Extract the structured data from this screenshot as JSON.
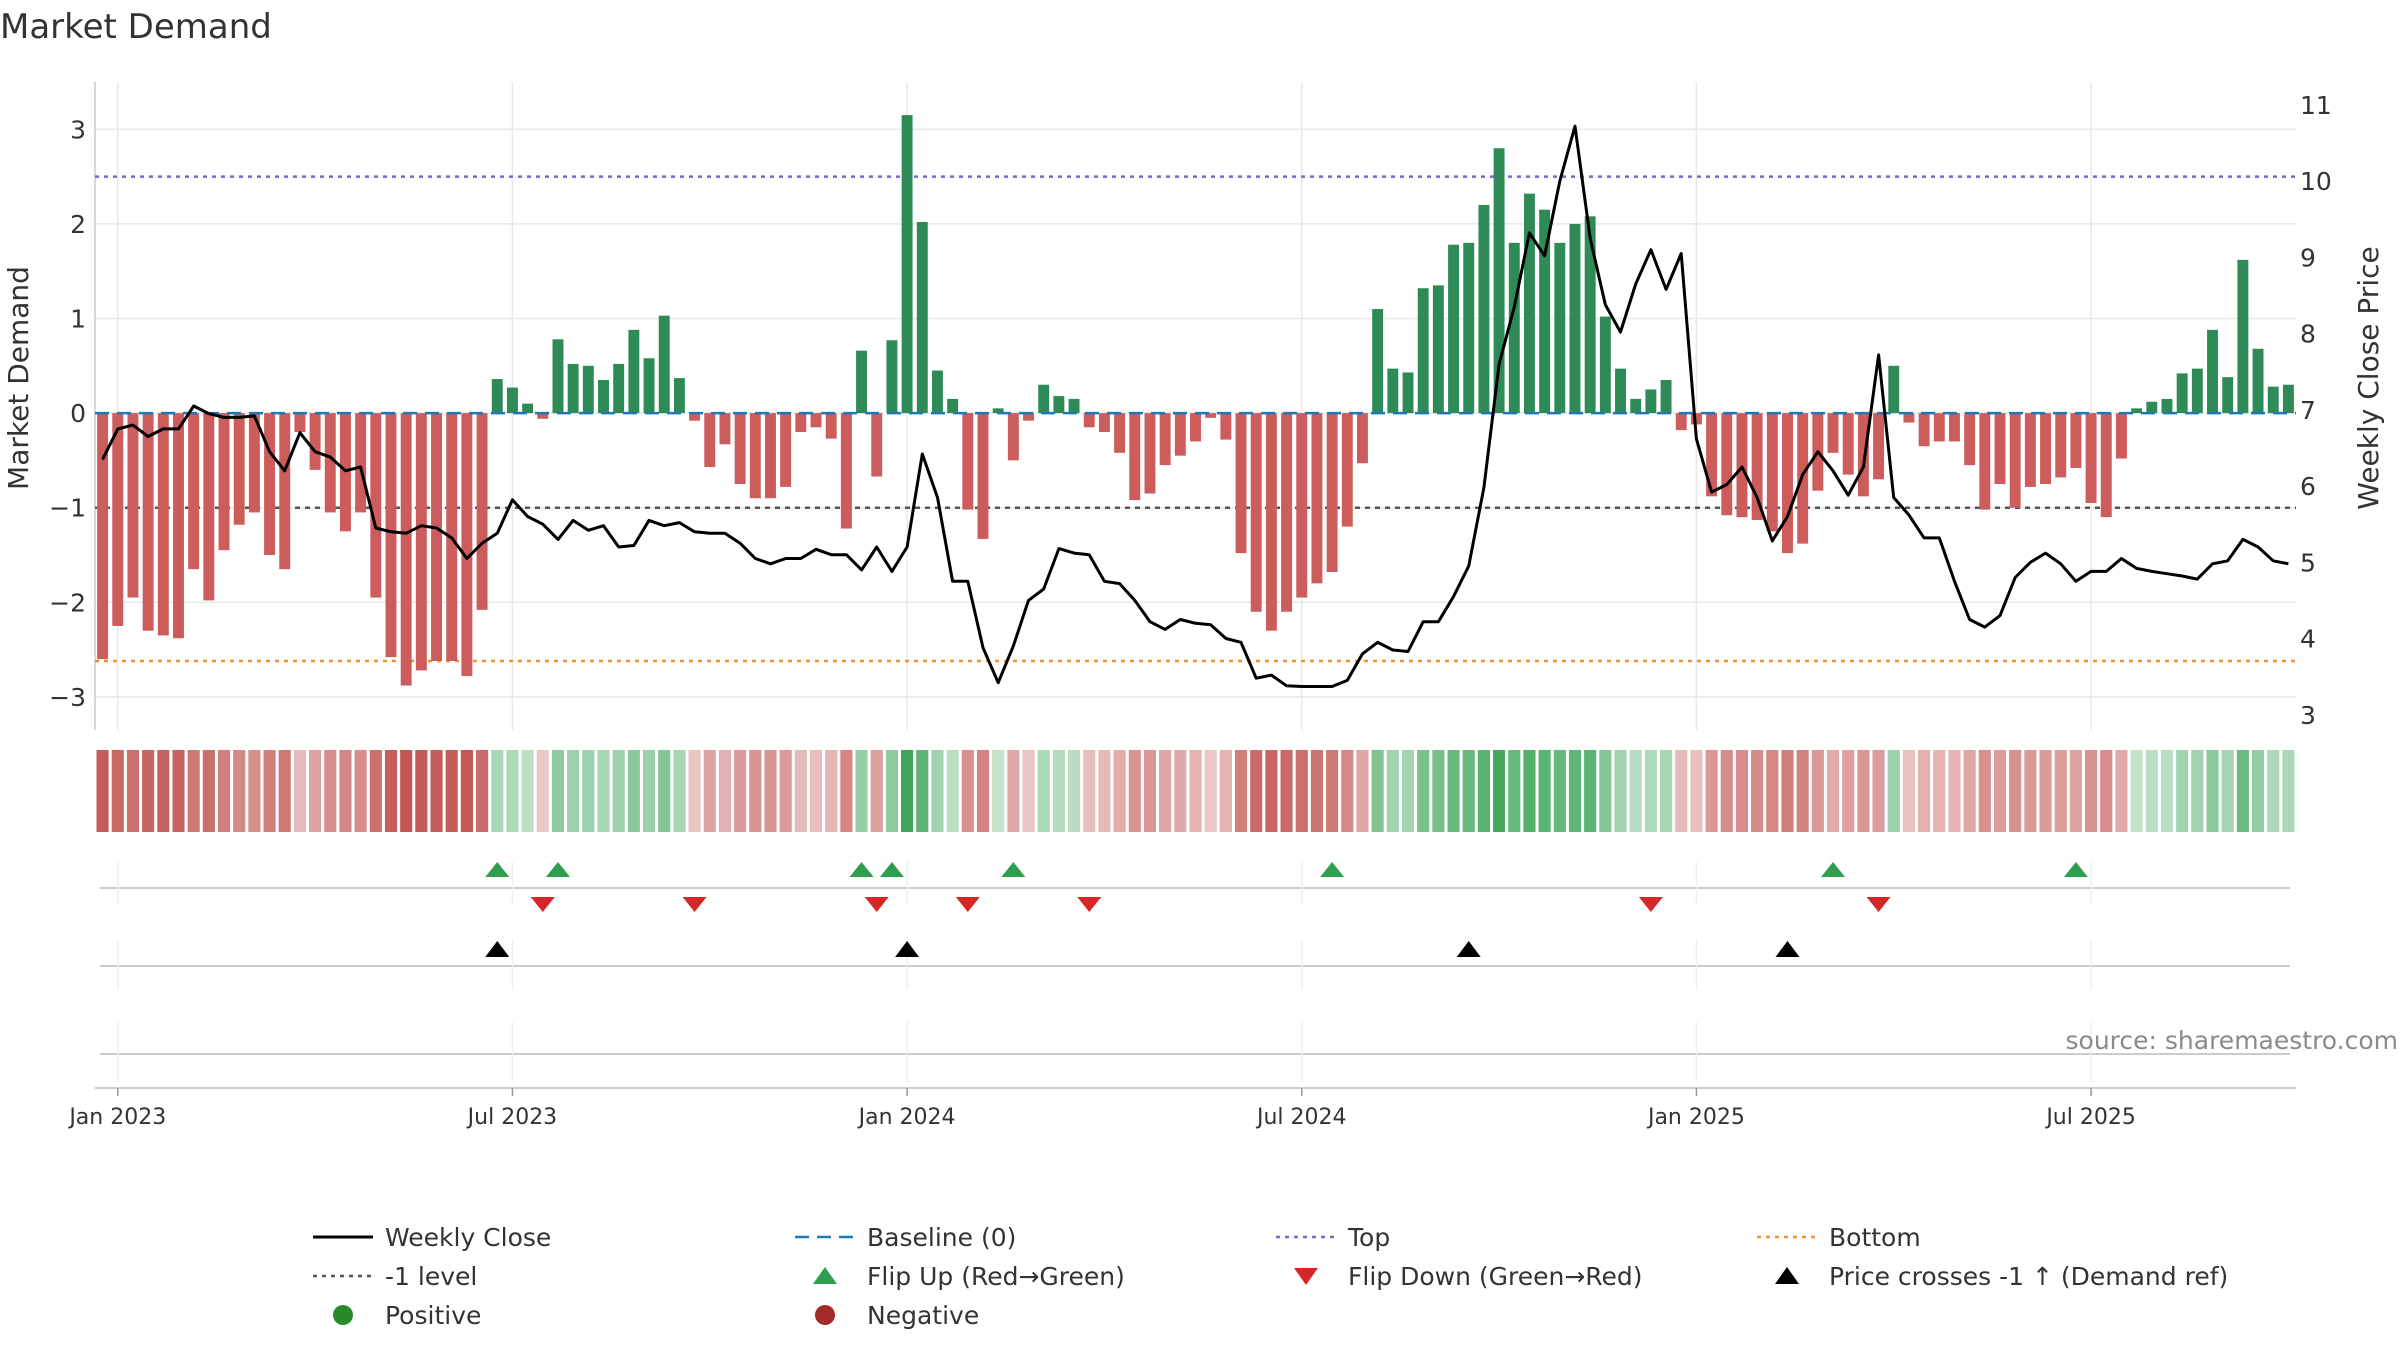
{
  "chart_data": {
    "type": "bar+line",
    "title": "Market Demand",
    "ylabel_left": "Market Demand",
    "ylabel_right": "Weekly Close Price",
    "source": "source: sharemaestro.com",
    "ylim_left": [
      -3.35,
      3.5
    ],
    "ylim_right": [
      2.8,
      11.3
    ],
    "yticks_left": [
      "3",
      "2",
      "1",
      "0",
      "−1",
      "−2",
      "−3"
    ],
    "yticks_left_values": [
      3,
      2,
      1,
      0,
      -1,
      -2,
      -3
    ],
    "yticks_right": [
      "11",
      "10",
      "9",
      "8",
      "7",
      "6",
      "5",
      "4",
      "3"
    ],
    "yticks_right_values": [
      11,
      10,
      9,
      8,
      7,
      6,
      5,
      4,
      3
    ],
    "x_start_week_offset": 0,
    "xticks": [
      {
        "label": "Jan 2023",
        "week": 1
      },
      {
        "label": "Jul 2023",
        "week": 27
      },
      {
        "label": "Jan 2024",
        "week": 53
      },
      {
        "label": "Jul 2024",
        "week": 79
      },
      {
        "label": "Jan 2025",
        "week": 105
      },
      {
        "label": "Jul 2025",
        "week": 131
      }
    ],
    "levels": {
      "top": 2.5,
      "bottom": -2.62,
      "minus_one": -1,
      "baseline": 0
    },
    "demand": [
      -2.6,
      -2.25,
      -1.95,
      -2.3,
      -2.35,
      -2.38,
      -1.65,
      -1.98,
      -1.45,
      -1.18,
      -1.05,
      -1.5,
      -1.65,
      -0.2,
      -0.6,
      -1.05,
      -1.25,
      -1.05,
      -1.95,
      -2.58,
      -2.88,
      -2.72,
      -2.62,
      -2.62,
      -2.78,
      -2.08,
      0.36,
      0.27,
      0.1,
      -0.06,
      0.78,
      0.52,
      0.5,
      0.35,
      0.52,
      0.88,
      0.58,
      1.03,
      0.37,
      -0.08,
      -0.57,
      -0.33,
      -0.75,
      -0.9,
      -0.9,
      -0.78,
      -0.2,
      -0.15,
      -0.27,
      -1.22,
      0.66,
      -0.67,
      0.77,
      3.15,
      2.02,
      0.45,
      0.15,
      -1.02,
      -1.33,
      0.05,
      -0.5,
      -0.08,
      0.3,
      0.18,
      0.15,
      -0.15,
      -0.2,
      -0.42,
      -0.92,
      -0.85,
      -0.55,
      -0.45,
      -0.3,
      -0.05,
      -0.28,
      -1.48,
      -2.1,
      -2.3,
      -2.1,
      -1.95,
      -1.8,
      -1.68,
      -1.2,
      -0.53,
      1.1,
      0.47,
      0.43,
      1.32,
      1.35,
      1.78,
      1.8,
      2.2,
      2.8,
      1.8,
      2.32,
      2.15,
      1.8,
      2.0,
      2.08,
      1.02,
      0.47,
      0.15,
      0.25,
      0.35,
      -0.18,
      -0.12,
      -0.88,
      -1.08,
      -1.1,
      -1.13,
      -1.25,
      -1.48,
      -1.38,
      -0.82,
      -0.42,
      -0.65,
      -0.88,
      -0.7,
      0.5,
      -0.1,
      -0.35,
      -0.3,
      -0.3,
      -0.55,
      -1.02,
      -0.75,
      -1.0,
      -0.78,
      -0.75,
      -0.68,
      -0.58,
      -0.95,
      -1.1,
      -0.48,
      0.05,
      0.12,
      0.15,
      0.42,
      0.47,
      0.88,
      0.38,
      1.62,
      0.68,
      0.28,
      0.3
    ],
    "weekly_close": [
      6.35,
      6.75,
      6.8,
      6.65,
      6.75,
      6.75,
      7.05,
      6.95,
      6.9,
      6.9,
      6.92,
      6.45,
      6.2,
      6.7,
      6.45,
      6.38,
      6.2,
      6.25,
      5.45,
      5.4,
      5.38,
      5.48,
      5.45,
      5.32,
      5.05,
      5.25,
      5.38,
      5.82,
      5.6,
      5.5,
      5.3,
      5.55,
      5.42,
      5.48,
      5.2,
      5.22,
      5.55,
      5.48,
      5.52,
      5.4,
      5.38,
      5.38,
      5.25,
      5.05,
      4.98,
      5.05,
      5.05,
      5.17,
      5.1,
      5.1,
      4.9,
      5.2,
      4.88,
      5.2,
      6.42,
      5.85,
      4.75,
      4.75,
      3.88,
      3.42,
      3.9,
      4.5,
      4.65,
      5.18,
      5.12,
      5.1,
      4.75,
      4.72,
      4.5,
      4.22,
      4.12,
      4.25,
      4.2,
      4.18,
      4.0,
      3.95,
      3.48,
      3.52,
      3.38,
      3.37,
      3.37,
      3.37,
      3.45,
      3.8,
      3.95,
      3.85,
      3.83,
      4.22,
      4.22,
      4.55,
      4.95,
      5.98,
      7.6,
      8.35,
      9.32,
      9.02,
      10.0,
      10.72,
      9.25,
      8.38,
      8.02,
      8.65,
      9.1,
      8.58,
      9.05,
      6.62,
      5.92,
      6.02,
      6.25,
      5.85,
      5.28,
      5.6,
      6.15,
      6.45,
      6.2,
      5.88,
      6.25,
      7.72,
      5.85,
      5.62,
      5.32,
      5.32,
      4.75,
      4.25,
      4.15,
      4.3,
      4.8,
      5.0,
      5.12,
      4.98,
      4.75,
      4.88,
      4.88,
      5.05,
      4.92,
      4.88,
      4.85,
      4.82,
      4.78,
      4.98,
      5.02,
      5.3,
      5.2,
      5.02,
      4.98
    ],
    "flip_up_weeks": [
      26,
      30,
      50,
      52,
      60,
      81,
      114,
      130
    ],
    "flip_down_weeks": [
      29,
      39,
      51,
      57,
      65,
      102,
      117
    ],
    "price_cross_weeks": [
      26,
      53,
      90,
      111
    ],
    "legend": [
      {
        "label": "Weekly Close",
        "marker": "line-solid",
        "color": "#000000"
      },
      {
        "label": "Baseline (0)",
        "marker": "line-dash",
        "color": "#1f77b4"
      },
      {
        "label": "Top",
        "marker": "line-dot",
        "color": "#7b68c8"
      },
      {
        "label": "Bottom",
        "marker": "line-dot",
        "color": "#e8962a"
      },
      {
        "label": "-1 level",
        "marker": "line-dot",
        "color": "#555555"
      },
      {
        "label": "Flip Up (Red→Green)",
        "marker": "triangle-up",
        "color": "#2e9e4f"
      },
      {
        "label": "Flip Down (Green→Red)",
        "marker": "triangle-down",
        "color": "#d62728"
      },
      {
        "label": "Price crosses -1 ↑ (Demand ref)",
        "marker": "triangle-up",
        "color": "#000000"
      },
      {
        "label": "Positive",
        "marker": "circle",
        "color": "#2a8a2a"
      },
      {
        "label": "Negative",
        "marker": "circle",
        "color": "#a52a2a"
      }
    ],
    "colors": {
      "positive_bar": "#2e8b57",
      "negative_bar": "#cd5c5c",
      "strip_green": "#3ea55a",
      "strip_red": "#c0504d",
      "top_line": "#7b68c8",
      "bottom_line": "#e8962a",
      "minus_one_line": "#555555",
      "baseline": "#1f77b4",
      "price_line": "#000000",
      "flip_up": "#2e9e4f",
      "flip_down": "#d62728",
      "cross": "#000000",
      "grid": "#e8e8e8",
      "axis": "#cccccc"
    }
  }
}
